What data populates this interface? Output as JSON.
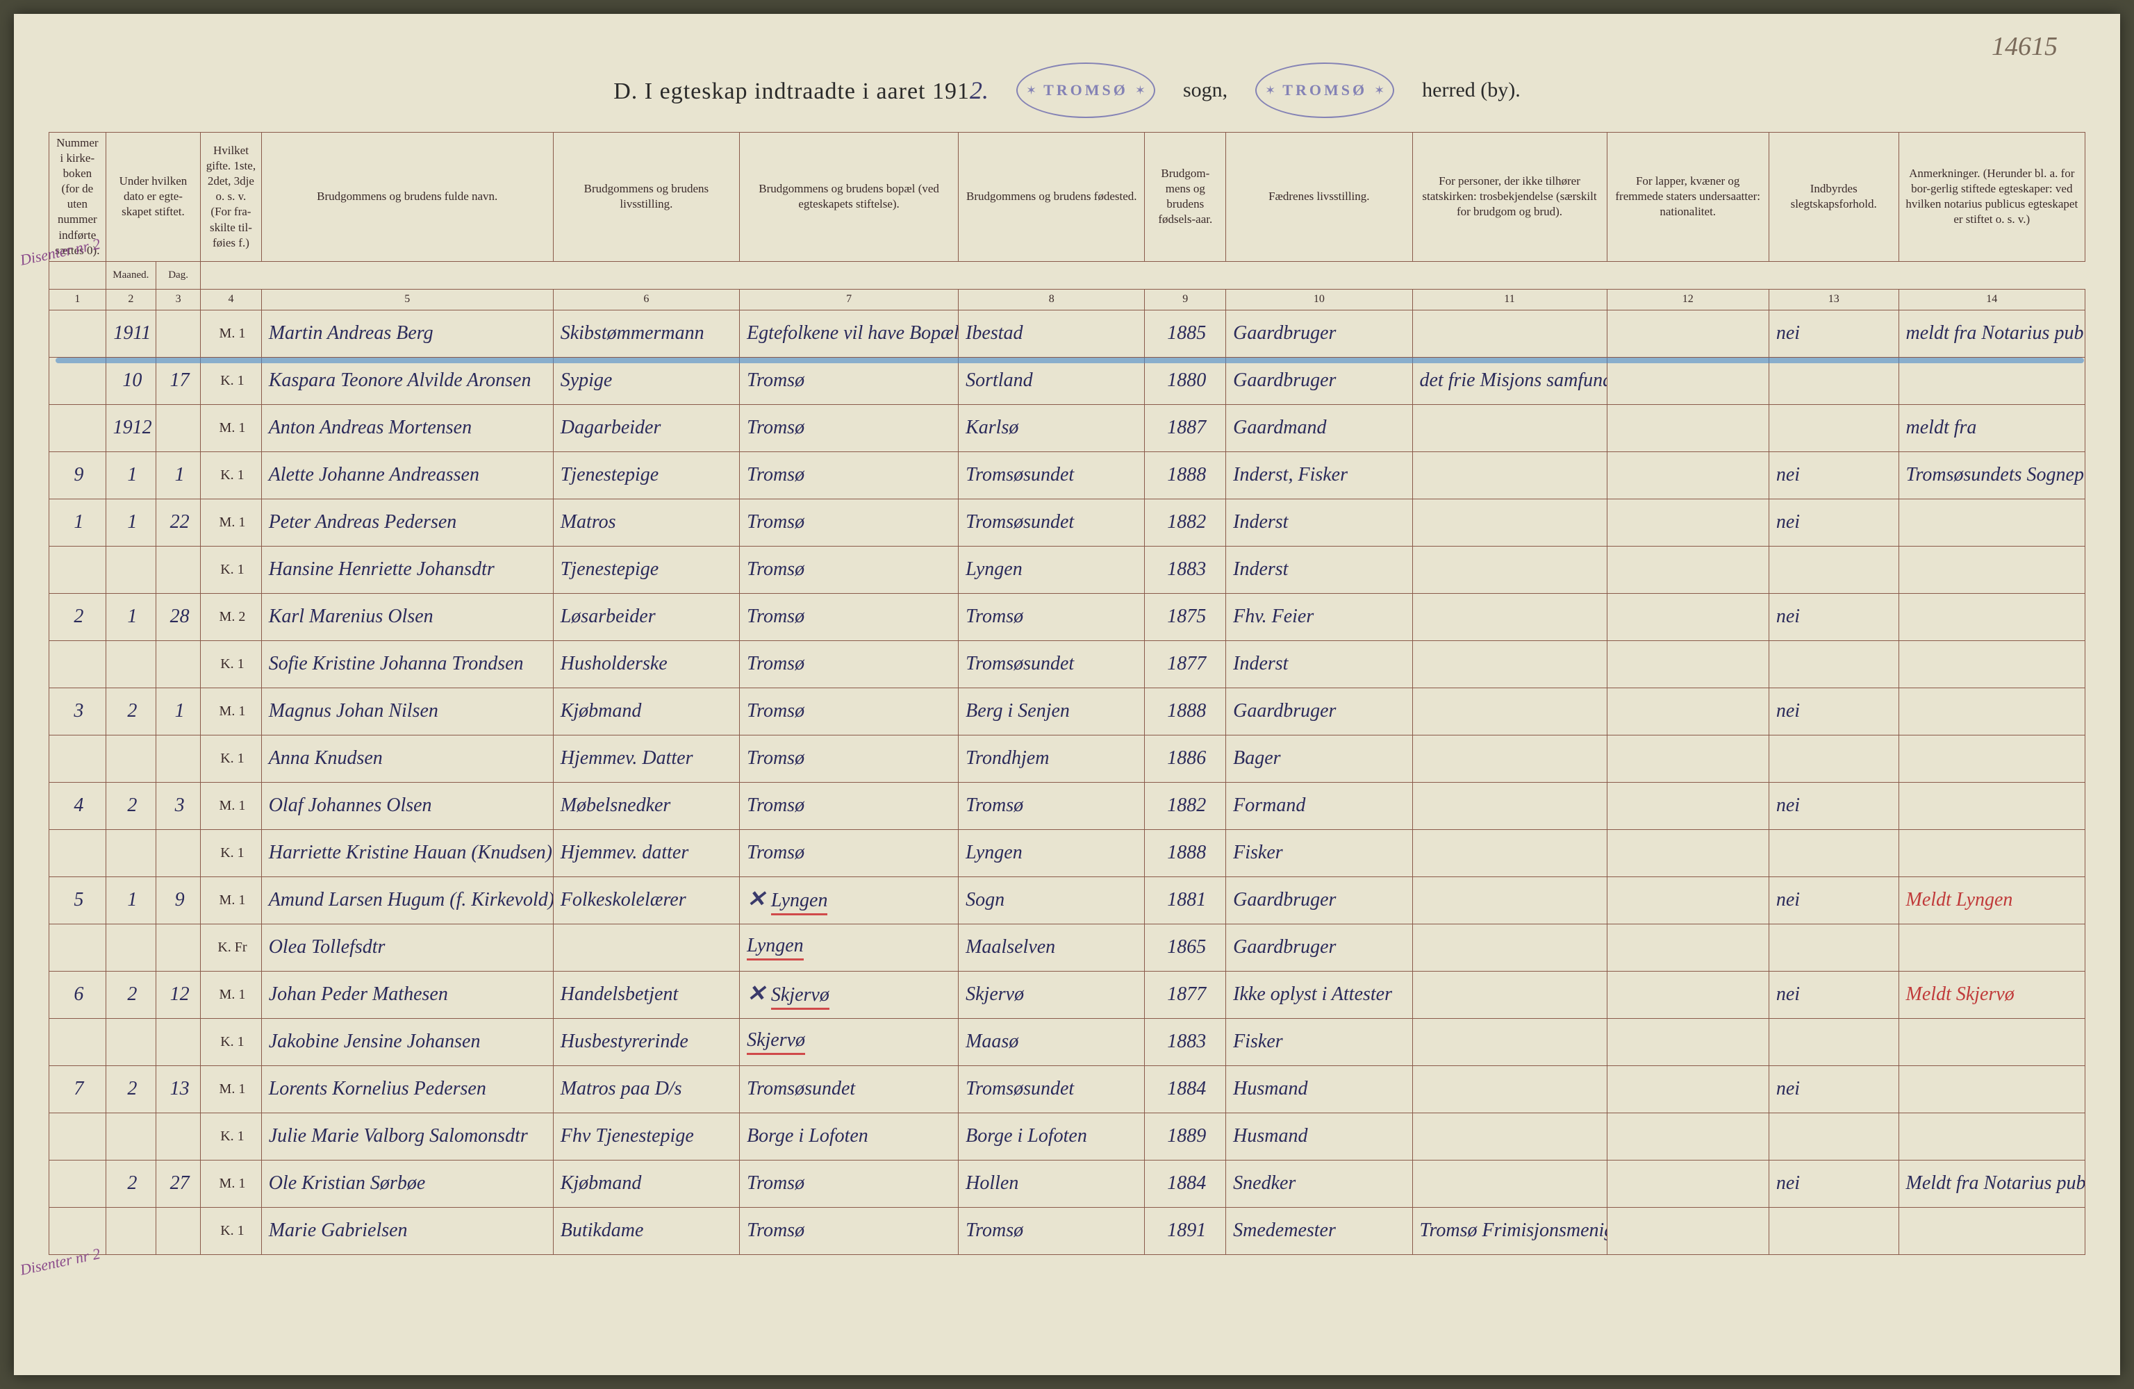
{
  "page_number": "14615",
  "title": {
    "prefix": "D.  I egteskap indtraadte i aaret 191",
    "year_suffix": "2.",
    "stamp_text": "TROMSØ",
    "sogn_label": "sogn,",
    "herred_label": "herred (by)."
  },
  "margin_notes": {
    "left_top": "Disenter nr 2",
    "left_bottom": "Disenter nr 2"
  },
  "columns": {
    "widths": [
      70,
      62,
      55,
      75,
      360,
      230,
      270,
      230,
      100,
      230,
      240,
      200,
      160,
      230
    ],
    "headers": [
      "Nummer i kirke-boken (for de uten nummer indførte sættes 0).",
      "Under hvilken dato er egte-skapet stiftet.",
      "",
      "Hvilket gifte. 1ste, 2det, 3dje o. s. v. (For fra-skilte til-føies f.)",
      "Brudgommens og brudens fulde navn.",
      "Brudgommens og brudens livsstilling.",
      "Brudgommens og brudens bopæl (ved egteskapets stiftelse).",
      "Brudgommens og brudens fødested.",
      "Brudgom-mens og brudens fødsels-aar.",
      "Fædrenes livsstilling.",
      "For personer, der ikke tilhører statskirken: trosbekjendelse (særskilt for brudgom og brud).",
      "For lapper, kvæner og fremmede staters undersaatter: nationalitet.",
      "Indbyrdes slegtskapsforhold.",
      "Anmerkninger. (Herunder bl. a. for bor-gerlig stiftede egteskaper: ved hvilken notarius publicus egteskapet er stiftet o. s. v.)"
    ],
    "sub_headers_2_3": [
      "Maaned.",
      "Dag."
    ],
    "numbers": [
      "1",
      "2",
      "3",
      "4",
      "5",
      "6",
      "7",
      "8",
      "9",
      "10",
      "11",
      "12",
      "13",
      "14"
    ]
  },
  "rows": [
    {
      "num": "",
      "month": "1911",
      "day": "",
      "mk": "M.",
      "gifte": "1",
      "name": "Martin Andreas Berg",
      "stilling": "Skibstømmermann",
      "bopel": "Egtefolkene vil have Bopæl",
      "fodested": "Ibestad",
      "aar": "1885",
      "faedre": "Gaardbruger",
      "tros": "",
      "nat": "",
      "slegt": "nei",
      "anm": "meldt fra Notarius publicus i Tromsø",
      "margin": "Disenter nr 2"
    },
    {
      "num": "",
      "month": "10",
      "day": "17",
      "mk": "K.",
      "gifte": "1",
      "name": "Kaspara Teonore Alvilde Aronsen",
      "stilling": "Sypige",
      "bopel": "Tromsø",
      "fodested": "Sortland",
      "aar": "1880",
      "faedre": "Gaardbruger",
      "tros": "det frie Misjons samfund",
      "nat": "",
      "slegt": "",
      "anm": ""
    },
    {
      "num": "",
      "month": "1912",
      "day": "",
      "mk": "M.",
      "gifte": "1",
      "name": "Anton Andreas Mortensen",
      "stilling": "Dagarbeider",
      "bopel": "Tromsø",
      "fodested": "Karlsø",
      "aar": "1887",
      "faedre": "Gaardmand",
      "tros": "",
      "nat": "",
      "slegt": "",
      "anm": "meldt fra"
    },
    {
      "num": "9",
      "month": "1",
      "day": "1",
      "mk": "K.",
      "gifte": "1",
      "name": "Alette Johanne Andreassen",
      "stilling": "Tjenestepige",
      "bopel": "Tromsø",
      "fodested": "Tromsøsundet",
      "aar": "1888",
      "faedre": "Inderst, Fisker",
      "tros": "",
      "nat": "",
      "slegt": "nei",
      "anm": "Tromsøsundets Sogneprest"
    },
    {
      "num": "1",
      "month": "1",
      "day": "22",
      "mk": "M.",
      "gifte": "1",
      "name": "Peter Andreas Pedersen",
      "stilling": "Matros",
      "bopel": "Tromsø",
      "fodested": "Tromsøsundet",
      "aar": "1882",
      "faedre": "Inderst",
      "tros": "",
      "nat": "",
      "slegt": "nei",
      "anm": ""
    },
    {
      "num": "",
      "month": "",
      "day": "",
      "mk": "K.",
      "gifte": "1",
      "name": "Hansine Henriette Johansdtr",
      "stilling": "Tjenestepige",
      "bopel": "Tromsø",
      "fodested": "Lyngen",
      "aar": "1883",
      "faedre": "Inderst",
      "tros": "",
      "nat": "",
      "slegt": "",
      "anm": ""
    },
    {
      "num": "2",
      "month": "1",
      "day": "28",
      "mk": "M.",
      "gifte": "2",
      "name": "Karl Marenius Olsen",
      "stilling": "Løsarbeider",
      "bopel": "Tromsø",
      "fodested": "Tromsø",
      "aar": "1875",
      "faedre": "Fhv. Feier",
      "tros": "",
      "nat": "",
      "slegt": "nei",
      "anm": ""
    },
    {
      "num": "",
      "month": "",
      "day": "",
      "mk": "K.",
      "gifte": "1",
      "name": "Sofie Kristine Johanna Trondsen",
      "stilling": "Husholderske",
      "bopel": "Tromsø",
      "fodested": "Tromsøsundet",
      "aar": "1877",
      "faedre": "Inderst",
      "tros": "",
      "nat": "",
      "slegt": "",
      "anm": ""
    },
    {
      "num": "3",
      "month": "2",
      "day": "1",
      "mk": "M.",
      "gifte": "1",
      "name": "Magnus Johan Nilsen",
      "stilling": "Kjøbmand",
      "bopel": "Tromsø",
      "fodested": "Berg i Senjen",
      "aar": "1888",
      "faedre": "Gaardbruger",
      "tros": "",
      "nat": "",
      "slegt": "nei",
      "anm": ""
    },
    {
      "num": "",
      "month": "",
      "day": "",
      "mk": "K.",
      "gifte": "1",
      "name": "Anna Knudsen",
      "stilling": "Hjemmev. Datter",
      "bopel": "Tromsø",
      "fodested": "Trondhjem",
      "aar": "1886",
      "faedre": "Bager",
      "tros": "",
      "nat": "",
      "slegt": "",
      "anm": ""
    },
    {
      "num": "4",
      "month": "2",
      "day": "3",
      "mk": "M.",
      "gifte": "1",
      "name": "Olaf Johannes Olsen",
      "stilling": "Møbelsnedker",
      "bopel": "Tromsø",
      "fodested": "Tromsø",
      "aar": "1882",
      "faedre": "Formand",
      "tros": "",
      "nat": "",
      "slegt": "nei",
      "anm": ""
    },
    {
      "num": "",
      "month": "",
      "day": "",
      "mk": "K.",
      "gifte": "1",
      "name": "Harriette Kristine Hauan (Knudsen)",
      "stilling": "Hjemmev. datter",
      "bopel": "Tromsø",
      "fodested": "Lyngen",
      "aar": "1888",
      "faedre": "Fisker",
      "tros": "",
      "nat": "",
      "slegt": "",
      "anm": ""
    },
    {
      "num": "5",
      "month": "1",
      "day": "9",
      "mk": "M.",
      "gifte": "1",
      "name": "Amund Larsen Hugum (f. Kirkevold)",
      "stilling": "Folkeskolelærer",
      "bopel": "Lyngen",
      "fodested": "Sogn",
      "aar": "1881",
      "faedre": "Gaardbruger",
      "tros": "",
      "nat": "",
      "slegt": "nei",
      "anm": "Meldt Lyngen",
      "cross": true,
      "red_bopel": true,
      "red_anm": true
    },
    {
      "num": "",
      "month": "",
      "day": "",
      "mk": "K.",
      "gifte": "Fr",
      "name": "Olea Tollefsdtr",
      "stilling": "",
      "bopel": "Lyngen",
      "fodested": "Maalselven",
      "aar": "1865",
      "faedre": "Gaardbruger",
      "tros": "",
      "nat": "",
      "slegt": "",
      "anm": "",
      "red_bopel": true
    },
    {
      "num": "6",
      "month": "2",
      "day": "12",
      "mk": "M.",
      "gifte": "1",
      "name": "Johan Peder Mathesen",
      "stilling": "Handelsbetjent",
      "bopel": "Skjervø",
      "fodested": "Skjervø",
      "aar": "1877",
      "faedre": "Ikke oplyst i Attester",
      "tros": "",
      "nat": "",
      "slegt": "nei",
      "anm": "Meldt Skjervø",
      "cross": true,
      "red_bopel": true,
      "red_anm": true
    },
    {
      "num": "",
      "month": "",
      "day": "",
      "mk": "K.",
      "gifte": "1",
      "name": "Jakobine Jensine Johansen",
      "stilling": "Husbestyrerinde",
      "bopel": "Skjervø",
      "fodested": "Maasø",
      "aar": "1883",
      "faedre": "Fisker",
      "tros": "",
      "nat": "",
      "slegt": "",
      "anm": "",
      "red_bopel": true
    },
    {
      "num": "7",
      "month": "2",
      "day": "13",
      "mk": "M.",
      "gifte": "1",
      "name": "Lorents Kornelius Pedersen",
      "stilling": "Matros paa D/s",
      "bopel": "Tromsøsundet",
      "fodested": "Tromsøsundet",
      "aar": "1884",
      "faedre": "Husmand",
      "tros": "",
      "nat": "",
      "slegt": "nei",
      "anm": ""
    },
    {
      "num": "",
      "month": "",
      "day": "",
      "mk": "K.",
      "gifte": "1",
      "name": "Julie Marie Valborg Salomonsdtr",
      "stilling": "Fhv Tjenestepige",
      "bopel": "Borge i Lofoten",
      "fodested": "Borge i Lofoten",
      "aar": "1889",
      "faedre": "Husmand",
      "tros": "",
      "nat": "",
      "slegt": "",
      "anm": ""
    },
    {
      "num": "",
      "month": "2",
      "day": "27",
      "mk": "M.",
      "gifte": "1",
      "name": "Ole Kristian Sørbøe",
      "stilling": "Kjøbmand",
      "bopel": "Tromsø",
      "fodested": "Hollen",
      "aar": "1884",
      "faedre": "Snedker",
      "tros": "",
      "nat": "",
      "slegt": "nei",
      "anm": "Meldt fra Notarius publicus i Tromsø",
      "margin": "Disenter nr 2"
    },
    {
      "num": "",
      "month": "",
      "day": "",
      "mk": "K.",
      "gifte": "1",
      "name": "Marie Gabrielsen",
      "stilling": "Butikdame",
      "bopel": "Tromsø",
      "fodested": "Tromsø",
      "aar": "1891",
      "faedre": "Smedemester",
      "tros": "Tromsø Frimisjonsmenighet",
      "nat": "",
      "slegt": "",
      "anm": ""
    }
  ],
  "colors": {
    "page_bg": "#e8e4d0",
    "border": "#8a5a4a",
    "ink_script": "#2a2a5a",
    "ink_print": "#3a2a2a",
    "red": "#c03a3a",
    "blue_smear": "#4a8aca",
    "stamp": "#5a5aaa"
  }
}
